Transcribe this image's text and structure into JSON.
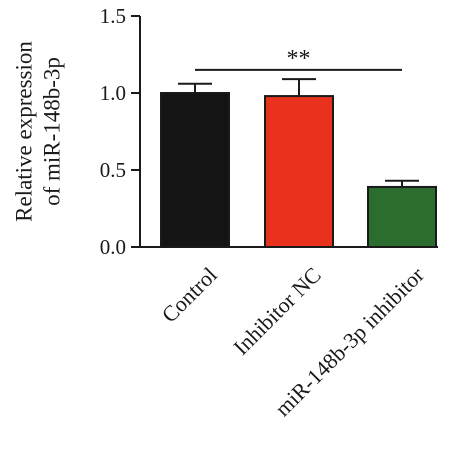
{
  "chart_data": {
    "type": "bar",
    "categories": [
      "Control",
      "Inhibitor NC",
      "miR-148b-3p inhibitor"
    ],
    "values": [
      1.0,
      0.98,
      0.39
    ],
    "errors": [
      0.06,
      0.11,
      0.04
    ],
    "colors": [
      "#141414",
      "#e8321e",
      "#2a6d2e"
    ],
    "ylabel_lines": [
      "Relative expression",
      "of miR-148b-3p"
    ],
    "ylim": [
      0,
      1.5
    ],
    "yticks": [
      "0.0",
      "0.5",
      "1.0",
      "1.5"
    ],
    "ytick_values": [
      0,
      0.5,
      1.0,
      1.5
    ],
    "significance": {
      "from": 0,
      "to": 2,
      "y": 1.15,
      "label": "**"
    },
    "grid": false,
    "legend": "none"
  }
}
